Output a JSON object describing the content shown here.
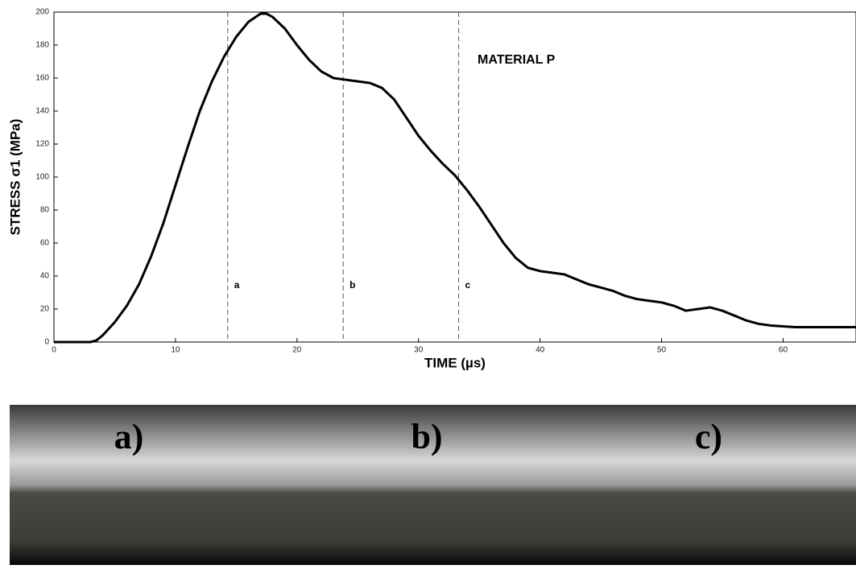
{
  "chart_data": {
    "type": "line",
    "xlabel": "TIME (µs)",
    "ylabel": "STRESS σ1 (MPa)",
    "annotation": "MATERIAL P",
    "color": "#000000",
    "x": [
      0,
      3,
      3.5,
      4,
      5,
      6,
      7,
      8,
      9,
      10,
      11,
      12,
      13,
      14,
      15,
      16,
      17,
      17.5,
      18,
      19,
      20,
      21,
      22,
      23,
      24,
      25,
      26,
      27,
      28,
      29,
      30,
      31,
      32,
      33,
      34,
      35,
      36,
      37,
      38,
      39,
      40,
      41,
      42,
      43,
      44,
      45,
      46,
      47,
      48,
      49,
      50,
      51,
      52,
      53,
      54,
      55,
      56,
      57,
      58,
      59,
      60,
      61,
      62,
      63,
      64,
      65,
      66
    ],
    "values": [
      0,
      0,
      1,
      4,
      12,
      22,
      35,
      52,
      72,
      95,
      118,
      140,
      158,
      173,
      185,
      194,
      199,
      199,
      197,
      190,
      180,
      171,
      164,
      160,
      159,
      158,
      157,
      154,
      147,
      136,
      125,
      116,
      108,
      101,
      92,
      82,
      71,
      60,
      51,
      45,
      43,
      42,
      41,
      38,
      35,
      33,
      31,
      28,
      26,
      25,
      24,
      22,
      19,
      20,
      21,
      19,
      16,
      13,
      11,
      10,
      9.5,
      9,
      9,
      9,
      9,
      9,
      9
    ],
    "xlim": [
      0,
      66
    ],
    "ylim": [
      0,
      200
    ],
    "xticks": [
      0,
      10,
      20,
      30,
      40,
      50,
      60
    ],
    "yticks": [
      0,
      20,
      40,
      60,
      80,
      100,
      120,
      140,
      160,
      180,
      200
    ],
    "markers": [
      {
        "x": 14.3,
        "label": "a"
      },
      {
        "x": 23.8,
        "label": "b"
      },
      {
        "x": 33.3,
        "label": "c"
      }
    ]
  },
  "photo_labels": [
    "a)",
    "b)",
    "c)"
  ]
}
